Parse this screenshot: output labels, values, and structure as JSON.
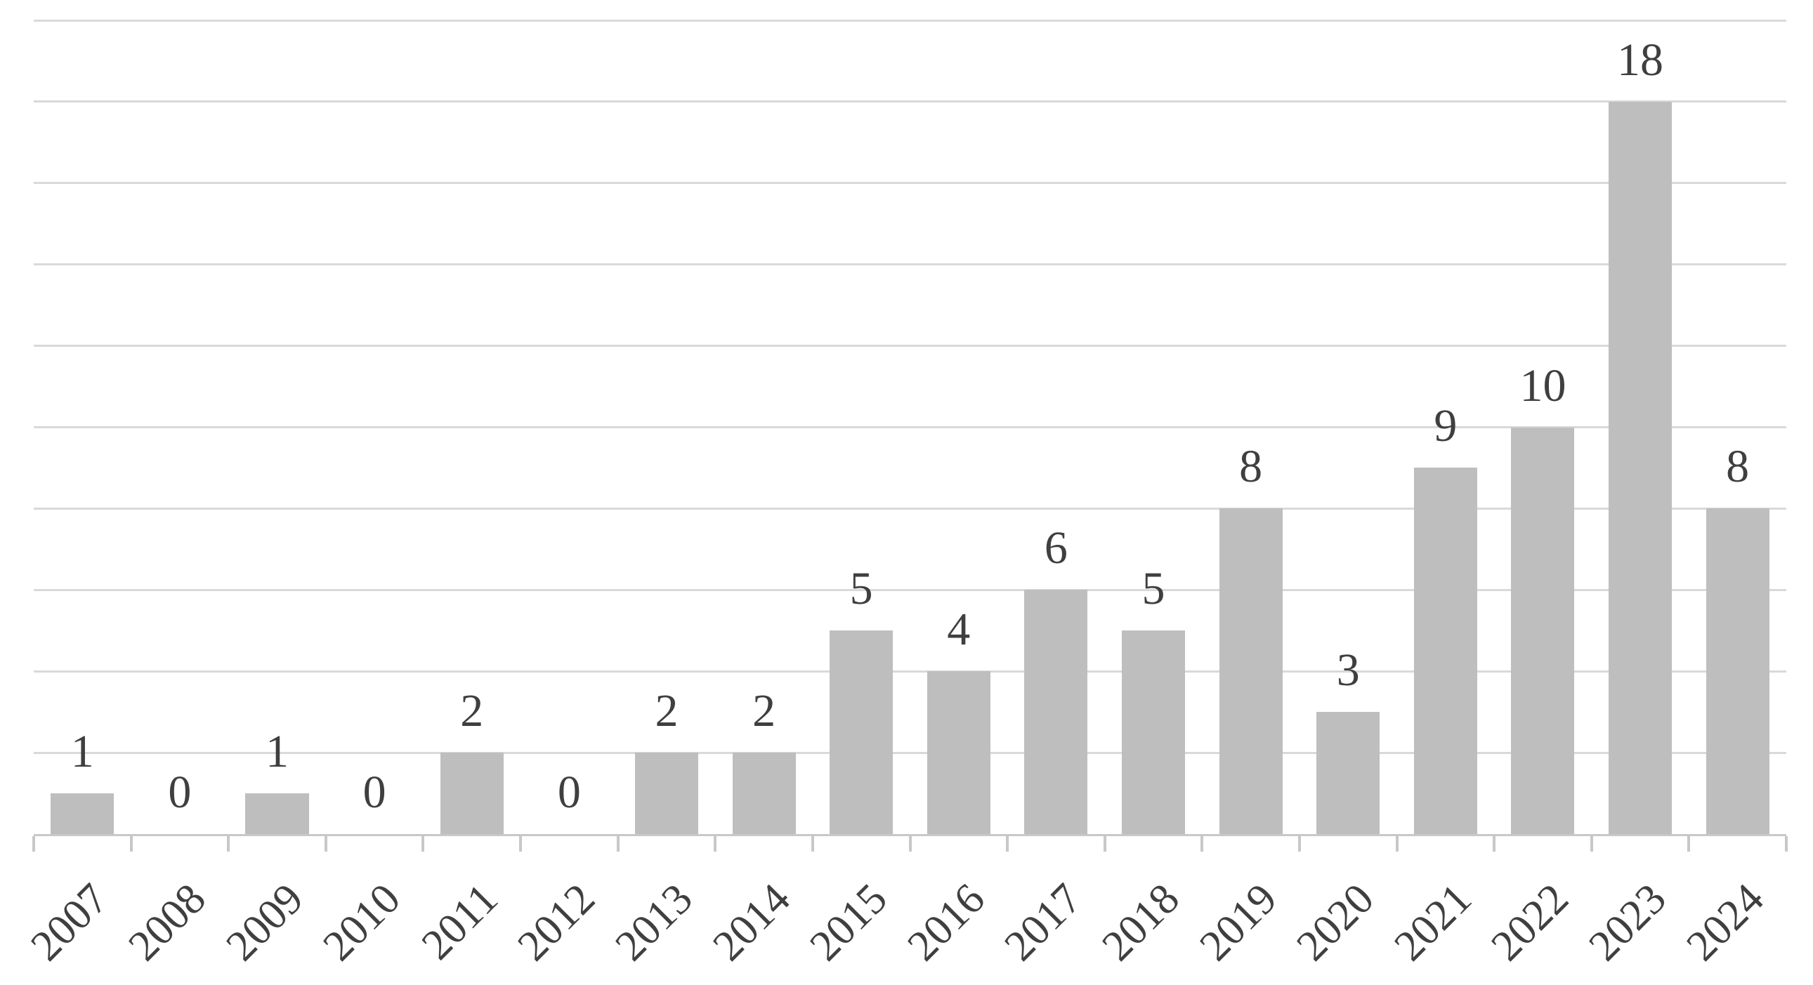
{
  "chart_data": {
    "type": "bar",
    "title": "",
    "xlabel": "",
    "ylabel": "",
    "categories": [
      "2007",
      "2008",
      "2009",
      "2010",
      "2011",
      "2012",
      "2013",
      "2014",
      "2015",
      "2016",
      "2017",
      "2018",
      "2019",
      "2020",
      "2021",
      "2022",
      "2023",
      "2024"
    ],
    "values": [
      1,
      0,
      1,
      0,
      2,
      0,
      2,
      2,
      5,
      4,
      6,
      5,
      8,
      3,
      9,
      10,
      18,
      8
    ],
    "ylim": [
      0,
      20
    ],
    "gridline_step": 2,
    "grid": "horizontal",
    "y_tick_labels_visible": false,
    "legend_position": "none",
    "data_label_position": "outside-end",
    "x_label_rotation_deg": 45,
    "bar_color": "#bebebe",
    "gridline_color": "#d9d9d9",
    "axis_color": "#c8c8c8",
    "text_color": "#3f3f3f"
  }
}
